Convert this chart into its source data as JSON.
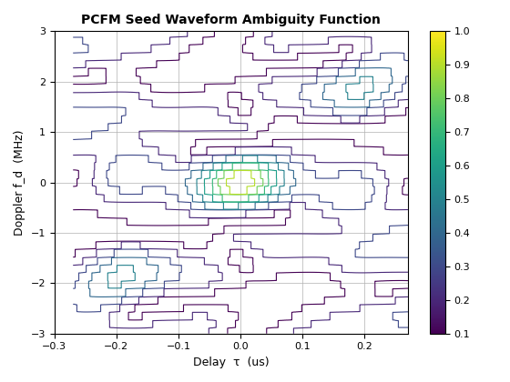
{
  "title": "PCFM Seed Waveform Ambiguity Function",
  "xlabel": "Delay  τ  (us)",
  "ylabel": "Doppler f_d  (MHz)",
  "xlim": [
    -0.3,
    0.27
  ],
  "ylim": [
    -3,
    3
  ],
  "xticks": [
    -0.3,
    -0.2,
    -0.1,
    0.0,
    0.1,
    0.2
  ],
  "yticks": [
    -3,
    -2,
    -1,
    0,
    1,
    2,
    3
  ],
  "colorbar_ticks": [
    0.1,
    0.2,
    0.3,
    0.4,
    0.5,
    0.6,
    0.7,
    0.8,
    0.9,
    1.0
  ],
  "contour_levels": [
    0.1,
    0.2,
    0.3,
    0.4,
    0.5,
    0.6,
    0.7,
    0.8,
    0.9,
    1.0
  ],
  "background_color": "#ffffff",
  "grid_color": "#b0b0b0",
  "figsize": [
    5.6,
    4.2
  ],
  "dpi": 100
}
